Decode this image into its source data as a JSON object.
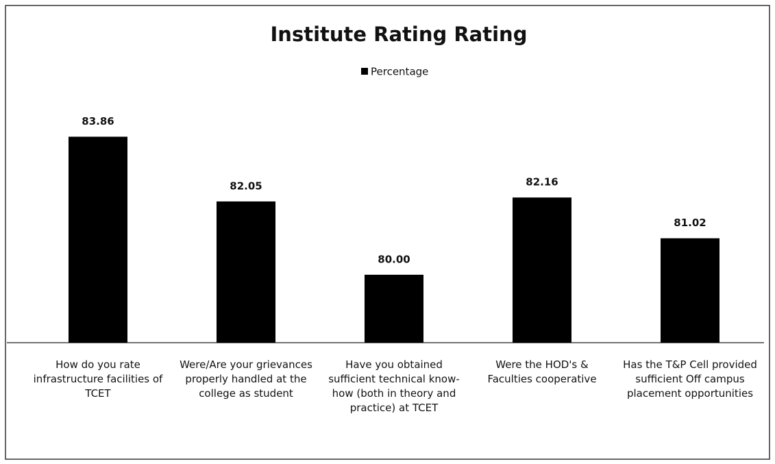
{
  "chart_data": {
    "type": "bar",
    "title": "Institute Rating Rating",
    "categories": [
      "How do you rate infrastructure facilities of TCET",
      "Were/Are your grievances properly handled at the college as student",
      "Have you obtained sufficient technical know-how (both in theory and practice) at TCET",
      "Were the HOD's & Faculties cooperative",
      "Has the T&P Cell provided sufficient Off campus placement opportunities"
    ],
    "series": [
      {
        "name": "Percentage",
        "color": "#000000",
        "values": [
          83.86,
          82.05,
          80.0,
          82.16,
          81.02
        ],
        "value_labels": [
          "83.86",
          "82.05",
          "80.00",
          "82.16",
          "81.02"
        ]
      }
    ],
    "ylim": [
      78.1,
      85
    ],
    "legend": "top"
  }
}
